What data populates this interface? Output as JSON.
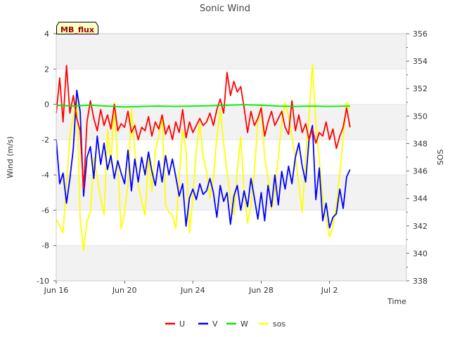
{
  "chart_data": {
    "type": "line",
    "title": "Sonic Wind",
    "badge": "MB_flux",
    "xlabel": "Time",
    "ylabel": "Wind (m/s)",
    "y2label": "SOS",
    "xlim": [
      0,
      20.5
    ],
    "ylim": [
      -10,
      4
    ],
    "y2lim": [
      338,
      356
    ],
    "x_ticks": [
      {
        "x": 0,
        "label": "Jun 16"
      },
      {
        "x": 4,
        "label": "Jun 20"
      },
      {
        "x": 8,
        "label": "Jun 24"
      },
      {
        "x": 12,
        "label": "Jun 28"
      },
      {
        "x": 16,
        "label": "Jul 2"
      }
    ],
    "y_ticks": [
      4,
      2,
      0,
      -2,
      -4,
      -6,
      -8,
      -10
    ],
    "y2_ticks": [
      356,
      354,
      352,
      350,
      348,
      346,
      344,
      342,
      340,
      338
    ],
    "bands": [
      [
        2,
        4
      ],
      [
        -2,
        0
      ],
      [
        -6,
        -4
      ],
      [
        -10,
        -8
      ]
    ],
    "legend": {
      "position": "bottom",
      "entries": [
        "U",
        "V",
        "W",
        "sos"
      ]
    },
    "series": [
      {
        "name": "U",
        "axis": "left",
        "color": "#ff0000",
        "x": [
          0.0,
          0.2,
          0.4,
          0.6,
          0.8,
          1.0,
          1.2,
          1.4,
          1.6,
          1.8,
          2.0,
          2.2,
          2.4,
          2.6,
          2.8,
          3.0,
          3.2,
          3.4,
          3.6,
          3.8,
          4.0,
          4.2,
          4.4,
          4.6,
          4.8,
          5.0,
          5.2,
          5.4,
          5.6,
          5.8,
          6.0,
          6.2,
          6.4,
          6.6,
          6.8,
          7.0,
          7.2,
          7.4,
          7.6,
          7.8,
          8.0,
          8.2,
          8.4,
          8.6,
          8.8,
          9.0,
          9.2,
          9.4,
          9.6,
          9.8,
          10.0,
          10.2,
          10.4,
          10.6,
          10.8,
          11.0,
          11.2,
          11.4,
          11.6,
          11.8,
          12.0,
          12.2,
          12.4,
          12.6,
          12.8,
          13.0,
          13.2,
          13.4,
          13.6,
          13.8,
          14.0,
          14.2,
          14.4,
          14.6,
          14.8,
          15.0,
          15.2,
          15.4,
          15.6,
          15.8,
          16.0,
          16.2,
          16.4,
          16.6,
          16.8,
          17.0,
          17.2
        ],
        "values": [
          -0.5,
          1.5,
          -1.0,
          2.2,
          -0.5,
          0.5,
          -0.8,
          -1.5,
          -4.8,
          -1.0,
          0.2,
          -0.8,
          -1.5,
          -0.3,
          -1.2,
          -0.6,
          -1.4,
          0.0,
          -1.5,
          -1.1,
          -1.3,
          -0.4,
          -1.6,
          -1.2,
          -2.0,
          -1.3,
          -1.5,
          -0.7,
          -1.8,
          -1.0,
          -1.4,
          -0.6,
          -1.7,
          -1.2,
          -2.0,
          -1.0,
          -1.6,
          -0.3,
          -1.9,
          -1.0,
          -1.6,
          -1.2,
          -0.8,
          -1.2,
          -1.0,
          -0.5,
          -1.2,
          -0.3,
          0.3,
          -0.5,
          1.8,
          0.5,
          1.3,
          0.7,
          1.0,
          -0.2,
          -1.6,
          -0.4,
          -1.2,
          -0.8,
          -0.2,
          -1.8,
          -1.0,
          -0.4,
          -1.2,
          -0.8,
          -0.4,
          -1.3,
          -1.7,
          0.2,
          -1.5,
          -0.6,
          -1.6,
          -1.1,
          -2.0,
          -1.4,
          -2.2,
          -1.6,
          -1.8,
          -1.0,
          -2.0,
          -1.4,
          -2.5,
          -1.8,
          -1.3,
          -0.2,
          -1.3
        ]
      },
      {
        "name": "V",
        "axis": "left",
        "color": "#0000ff",
        "x": [
          0.0,
          0.2,
          0.4,
          0.6,
          0.8,
          1.0,
          1.2,
          1.4,
          1.6,
          1.8,
          2.0,
          2.2,
          2.4,
          2.6,
          2.8,
          3.0,
          3.2,
          3.4,
          3.6,
          3.8,
          4.0,
          4.2,
          4.4,
          4.6,
          4.8,
          5.0,
          5.2,
          5.4,
          5.6,
          5.8,
          6.0,
          6.2,
          6.4,
          6.6,
          6.8,
          7.0,
          7.2,
          7.4,
          7.6,
          7.8,
          8.0,
          8.2,
          8.4,
          8.6,
          8.8,
          9.0,
          9.2,
          9.4,
          9.6,
          9.8,
          10.0,
          10.2,
          10.4,
          10.6,
          10.8,
          11.0,
          11.2,
          11.4,
          11.6,
          11.8,
          12.0,
          12.2,
          12.4,
          12.6,
          12.8,
          13.0,
          13.2,
          13.4,
          13.6,
          13.8,
          14.0,
          14.2,
          14.4,
          14.6,
          14.8,
          15.0,
          15.2,
          15.4,
          15.6,
          15.8,
          16.0,
          16.2,
          16.4,
          16.6,
          16.8,
          17.0,
          17.2
        ],
        "values": [
          -2.0,
          -4.5,
          -3.9,
          -5.6,
          -4.2,
          -2.5,
          0.8,
          -0.4,
          -5.2,
          -3.0,
          -2.4,
          -4.2,
          -1.8,
          -3.4,
          -2.2,
          -3.7,
          -2.9,
          -4.2,
          -3.2,
          -3.9,
          -4.5,
          -2.6,
          -4.9,
          -3.1,
          -4.4,
          -3.0,
          -4.0,
          -2.7,
          -3.8,
          -4.6,
          -3.2,
          -4.4,
          -2.9,
          -4.0,
          -3.1,
          -4.1,
          -5.2,
          -4.5,
          -6.9,
          -5.3,
          -4.8,
          -5.4,
          -4.5,
          -5.1,
          -4.9,
          -4.2,
          -5.0,
          -6.4,
          -4.6,
          -5.5,
          -5.0,
          -6.8,
          -5.2,
          -4.6,
          -6.0,
          -4.9,
          -5.8,
          -4.2,
          -5.3,
          -6.5,
          -5.0,
          -6.6,
          -4.6,
          -5.8,
          -4.0,
          -5.7,
          -3.8,
          -4.8,
          -3.5,
          -4.5,
          -3.0,
          -2.2,
          -3.5,
          -4.4,
          -2.0,
          -1.2,
          -5.4,
          -3.6,
          -6.6,
          -5.6,
          -7.0,
          -6.4,
          -6.2,
          -4.8,
          -5.9,
          -4.1,
          -3.7
        ]
      },
      {
        "name": "W",
        "axis": "left",
        "color": "#00ee00",
        "x": [
          0.0,
          1.0,
          2.0,
          3.0,
          4.0,
          5.0,
          6.0,
          7.0,
          8.0,
          9.0,
          10.0,
          11.0,
          12.0,
          13.0,
          14.0,
          15.0,
          16.0,
          17.0,
          17.2
        ],
        "values": [
          -0.05,
          -0.1,
          -0.05,
          -0.1,
          -0.15,
          -0.12,
          -0.1,
          -0.12,
          -0.1,
          -0.08,
          -0.05,
          -0.02,
          -0.05,
          -0.1,
          -0.12,
          -0.1,
          -0.12,
          -0.1,
          -0.1
        ]
      },
      {
        "name": "sos",
        "axis": "right",
        "color": "#ffff00",
        "x": [
          0.0,
          0.2,
          0.4,
          0.6,
          0.8,
          1.0,
          1.2,
          1.4,
          1.6,
          1.8,
          2.0,
          2.2,
          2.4,
          2.6,
          2.8,
          3.0,
          3.2,
          3.4,
          3.6,
          3.8,
          4.0,
          4.2,
          4.4,
          4.6,
          4.8,
          5.0,
          5.2,
          5.4,
          5.6,
          5.8,
          6.0,
          6.2,
          6.4,
          6.6,
          6.8,
          7.0,
          7.2,
          7.4,
          7.6,
          7.8,
          8.0,
          8.2,
          8.4,
          8.6,
          8.8,
          9.0,
          9.2,
          9.4,
          9.6,
          9.8,
          10.0,
          10.2,
          10.4,
          10.6,
          10.8,
          11.0,
          11.2,
          11.4,
          11.6,
          11.8,
          12.0,
          12.2,
          12.4,
          12.6,
          12.8,
          13.0,
          13.2,
          13.4,
          13.6,
          13.8,
          14.0,
          14.2,
          14.4,
          14.6,
          14.8,
          15.0,
          15.2,
          15.4,
          15.6,
          15.8,
          16.0,
          16.2,
          16.4,
          16.6,
          16.8,
          17.0,
          17.2
        ],
        "values": [
          342.5,
          342,
          341.5,
          345,
          348.5,
          350,
          351.5,
          342.5,
          340.2,
          342.3,
          343,
          347,
          345.5,
          344,
          342.8,
          349,
          346.5,
          351,
          346.5,
          341.8,
          343,
          345,
          350.5,
          347.5,
          345,
          343.8,
          342.8,
          347,
          344.5,
          347.5,
          348.5,
          350,
          343.5,
          343,
          342.8,
          341.8,
          345.5,
          349,
          347.5,
          341.5,
          344,
          347.5,
          349.5,
          347,
          346,
          344,
          345.5,
          348.5,
          350.5,
          348,
          346,
          344,
          342.8,
          346,
          348.5,
          344.5,
          342.2,
          343.5,
          346,
          349.5,
          350.8,
          347,
          345.5,
          343.2,
          344.5,
          347,
          349.5,
          351,
          350,
          348.5,
          347,
          345,
          343,
          347,
          350,
          353.8,
          349.5,
          346.8,
          344,
          342.5,
          341.2,
          342,
          343.5,
          345.8,
          348.5,
          351,
          350.5
        ]
      }
    ]
  }
}
